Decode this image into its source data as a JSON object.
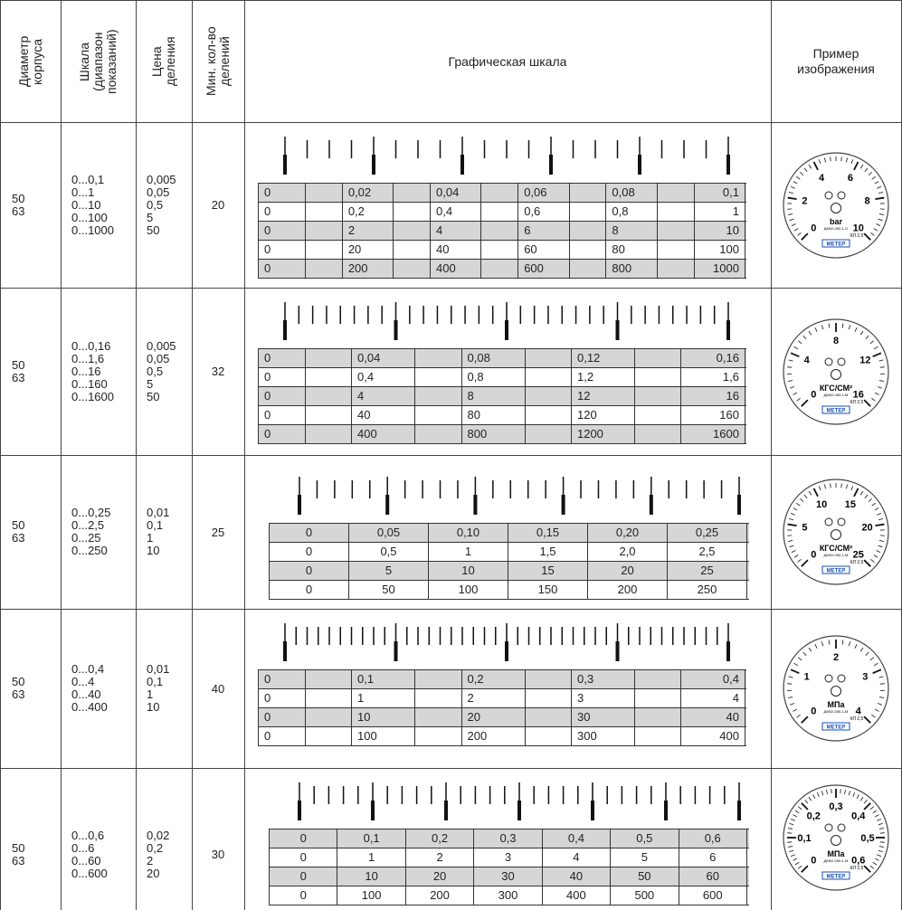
{
  "header": {
    "columns": [
      "Диаметр корпуса",
      "Шкала (диапазон показаний)",
      "Цена деления",
      "Мин. кол-во делений",
      "Графическая шкала",
      "Пример изображения"
    ]
  },
  "rows": [
    {
      "diameters": [
        "50",
        "63"
      ],
      "scales": [
        "0...0,1",
        "0...1",
        "0...10",
        "0...100",
        "0...1000"
      ],
      "prices": [
        "0,005",
        "0,05",
        "0,5",
        "5",
        "50"
      ],
      "divisions": "20",
      "values": [
        [
          "0",
          "0,02",
          "0,04",
          "0,06",
          "0,08",
          "0,1"
        ],
        [
          "0",
          "0,2",
          "0,4",
          "0,6",
          "0,8",
          "1"
        ],
        [
          "0",
          "2",
          "4",
          "6",
          "8",
          "10"
        ],
        [
          "0",
          "20",
          "40",
          "60",
          "80",
          "100"
        ],
        [
          "0",
          "200",
          "400",
          "600",
          "800",
          "1000"
        ]
      ],
      "gauge": {
        "numbers": [
          "0",
          "2",
          "4",
          "6",
          "8",
          "10"
        ],
        "unit": "bar",
        "model": "ДМ02-050-1-G",
        "class": "КЛ 2,5",
        "brand": "МЕТЕР"
      }
    },
    {
      "diameters": [
        "50",
        "63"
      ],
      "scales": [
        "0...0,16",
        "0...1,6",
        "0...16",
        "0...160",
        "0...1600"
      ],
      "prices": [
        "0,005",
        "0,05",
        "0,5",
        "5",
        "50"
      ],
      "divisions": "32",
      "values": [
        [
          "0",
          "0,04",
          "0,08",
          "0,12",
          "0,16"
        ],
        [
          "0",
          "0,4",
          "0,8",
          "1,2",
          "1,6"
        ],
        [
          "0",
          "4",
          "8",
          "12",
          "16"
        ],
        [
          "0",
          "40",
          "80",
          "120",
          "160"
        ],
        [
          "0",
          "400",
          "800",
          "1200",
          "1600"
        ]
      ],
      "gauge": {
        "numbers": [
          "0",
          "4",
          "8",
          "12",
          "16"
        ],
        "unit": "КГС/СМ²",
        "model": "ДМ02-050-1-М",
        "class": "КЛ 2,5",
        "brand": "МЕТЕР"
      }
    },
    {
      "diameters": [
        "50",
        "63"
      ],
      "scales": [
        "0...0,25",
        "0...2,5",
        "0...25",
        "0...250"
      ],
      "prices": [
        "0,01",
        "0,1",
        "1",
        "10"
      ],
      "divisions": "25",
      "values": [
        [
          "0",
          "0,05",
          "0,10",
          "0,15",
          "0,20",
          "0,25"
        ],
        [
          "0",
          "0,5",
          "1",
          "1,5",
          "2,0",
          "2,5"
        ],
        [
          "0",
          "5",
          "10",
          "15",
          "20",
          "25"
        ],
        [
          "0",
          "50",
          "100",
          "150",
          "200",
          "250"
        ]
      ],
      "gauge": {
        "numbers": [
          "0",
          "5",
          "10",
          "15",
          "20",
          "25"
        ],
        "unit": "КГС/СМ²",
        "model": "ДМ02-050-1-М",
        "class": "КЛ 2,5",
        "brand": "МЕТЕР"
      }
    },
    {
      "diameters": [
        "50",
        "63"
      ],
      "scales": [
        "0...0,4",
        "0...4",
        "0...40",
        "0...400"
      ],
      "prices": [
        "0,01",
        "0,1",
        "1",
        "10"
      ],
      "divisions": "40",
      "values": [
        [
          "0",
          "0,1",
          "0,2",
          "0,3",
          "0,4"
        ],
        [
          "0",
          "1",
          "2",
          "3",
          "4"
        ],
        [
          "0",
          "10",
          "20",
          "30",
          "40"
        ],
        [
          "0",
          "100",
          "200",
          "300",
          "400"
        ]
      ],
      "gauge": {
        "numbers": [
          "0",
          "1",
          "2",
          "3",
          "4"
        ],
        "unit": "МПа",
        "model": "ДМ02-050-1-М",
        "class": "КЛ 2,5",
        "brand": "МЕТЕР"
      }
    },
    {
      "diameters": [
        "50",
        "63"
      ],
      "scales": [
        "0...0,6",
        "0...6",
        "0...60",
        "0...600"
      ],
      "prices": [
        "0,02",
        "0,2",
        "2",
        "20"
      ],
      "divisions": "30",
      "values": [
        [
          "0",
          "0,1",
          "0,2",
          "0,3",
          "0,4",
          "0,5",
          "0,6"
        ],
        [
          "0",
          "1",
          "2",
          "3",
          "4",
          "5",
          "6"
        ],
        [
          "0",
          "10",
          "20",
          "30",
          "40",
          "50",
          "60"
        ],
        [
          "0",
          "100",
          "200",
          "300",
          "400",
          "500",
          "600"
        ]
      ],
      "gauge": {
        "numbers": [
          "0",
          "0,1",
          "0,2",
          "0,3",
          "0,4",
          "0,5",
          "0,6"
        ],
        "unit": "МПа",
        "model": "ДМ02-050-1-М",
        "class": "КЛ 2,5",
        "brand": "МЕТЕР"
      }
    }
  ]
}
